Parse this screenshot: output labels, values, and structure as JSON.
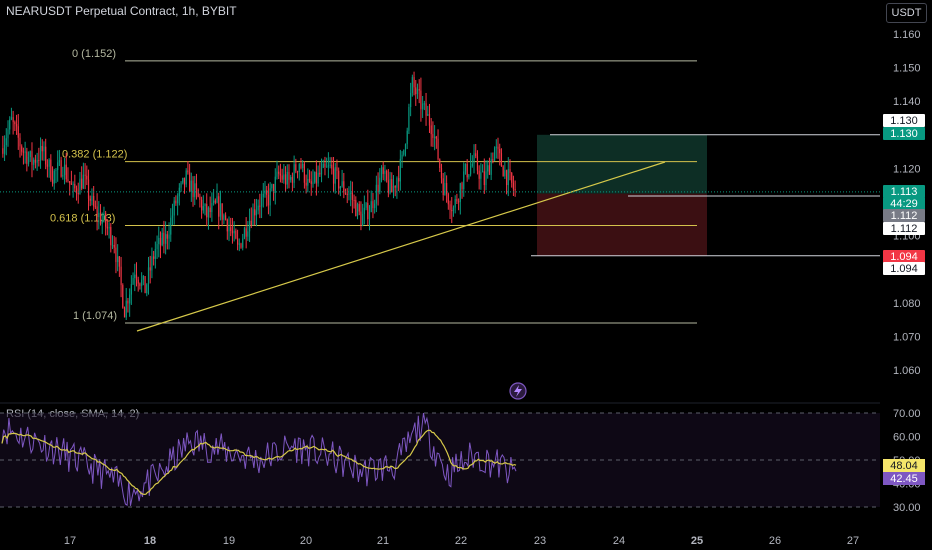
{
  "header": {
    "symbol_line": "NEARUSDT Perpetual Contract, 1h, BYBIT",
    "currency_button": "USDT"
  },
  "indicator": {
    "rsi_label": "RSI (14, close, SMA, 14, 2)"
  },
  "colors": {
    "up": "#089981",
    "down": "#f23645",
    "fib": "#b4b8a0",
    "fib_mid": "#d4c24c",
    "trendline": "#d6c94a",
    "rsi": "#7e57c2",
    "rsi_ma": "#d6c94a",
    "tp_zone": "#0d2e25",
    "sl_zone": "#3b0f12"
  },
  "chart_data": {
    "type": "candlestick",
    "title": "NEARUSDT Perpetual Contract, 1h, BYBIT",
    "x_ticks": [
      "17",
      "18",
      "19",
      "20",
      "21",
      "22",
      "23",
      "24",
      "25",
      "26",
      "27"
    ],
    "y_ticks": [
      "1.160",
      "1.150",
      "1.140",
      "1.130",
      "1.120",
      "1.110",
      "1.100",
      "1.090",
      "1.080",
      "1.070",
      "1.060"
    ],
    "ylim": [
      1.055,
      1.165
    ],
    "fib_levels": [
      {
        "label": "0 (1.152)",
        "value": 1.152
      },
      {
        "label": "0.382 (1.122)",
        "value": 1.122
      },
      {
        "label": "0.618 (1.103)",
        "value": 1.103
      },
      {
        "label": "1 (1.074)",
        "value": 1.074
      }
    ],
    "price_labels": {
      "target": "1.130",
      "current": "1.113",
      "countdown": "44:29",
      "entry_a": "1.112",
      "entry_b": "1.112",
      "stop_a": "1.094",
      "stop_b": "1.094",
      "last_value": 1.113
    },
    "rsi": {
      "y_ticks": [
        "70.00",
        "60.00",
        "50.00",
        "40.00",
        "30.00"
      ],
      "ylim": [
        25,
        75
      ],
      "rsi_value": "42.45",
      "ma_value": "48.04"
    },
    "candles_summary": {
      "open_start": 1.13,
      "low": 1.074,
      "high": 1.152,
      "close_end": 1.113
    }
  }
}
